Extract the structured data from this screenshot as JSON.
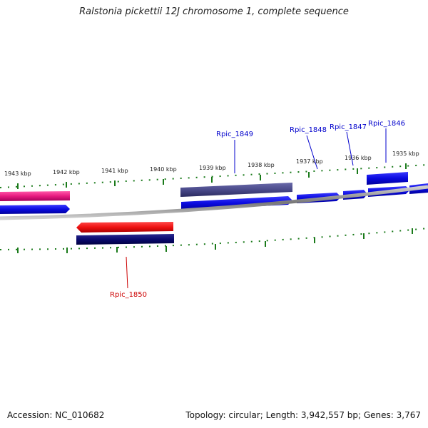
{
  "title": "Ralstonia pickettii 12J chromosome 1, complete sequence",
  "footer": {
    "accession": "Accession: NC_010682",
    "summary": "Topology: circular; Length: 3,942,557 bp; Genes: 3,767"
  },
  "scale_unit": "kbp",
  "ticks_kbp": [
    1943,
    1942,
    1941,
    1940,
    1939,
    1938,
    1937,
    1936,
    1935
  ],
  "genes": [
    {
      "label": "Rpic_1849",
      "color": "#0000cc"
    },
    {
      "label": "Rpic_1848",
      "color": "#0000cc"
    },
    {
      "label": "Rpic_1847",
      "color": "#0000cc"
    },
    {
      "label": "Rpic_1846",
      "color": "#0000cc"
    },
    {
      "label": "Rpic_1850",
      "color": "#cc0000"
    }
  ],
  "colors": {
    "backbone": "#888888",
    "tick": "#1a7a1a",
    "forward_gene": "#0a0adf",
    "reverse_gene": "#ee1111",
    "pink_feature": "#e6197f",
    "dark_navy_feature": "#0a0a6e",
    "slate_feature": "#4a4a8a"
  }
}
